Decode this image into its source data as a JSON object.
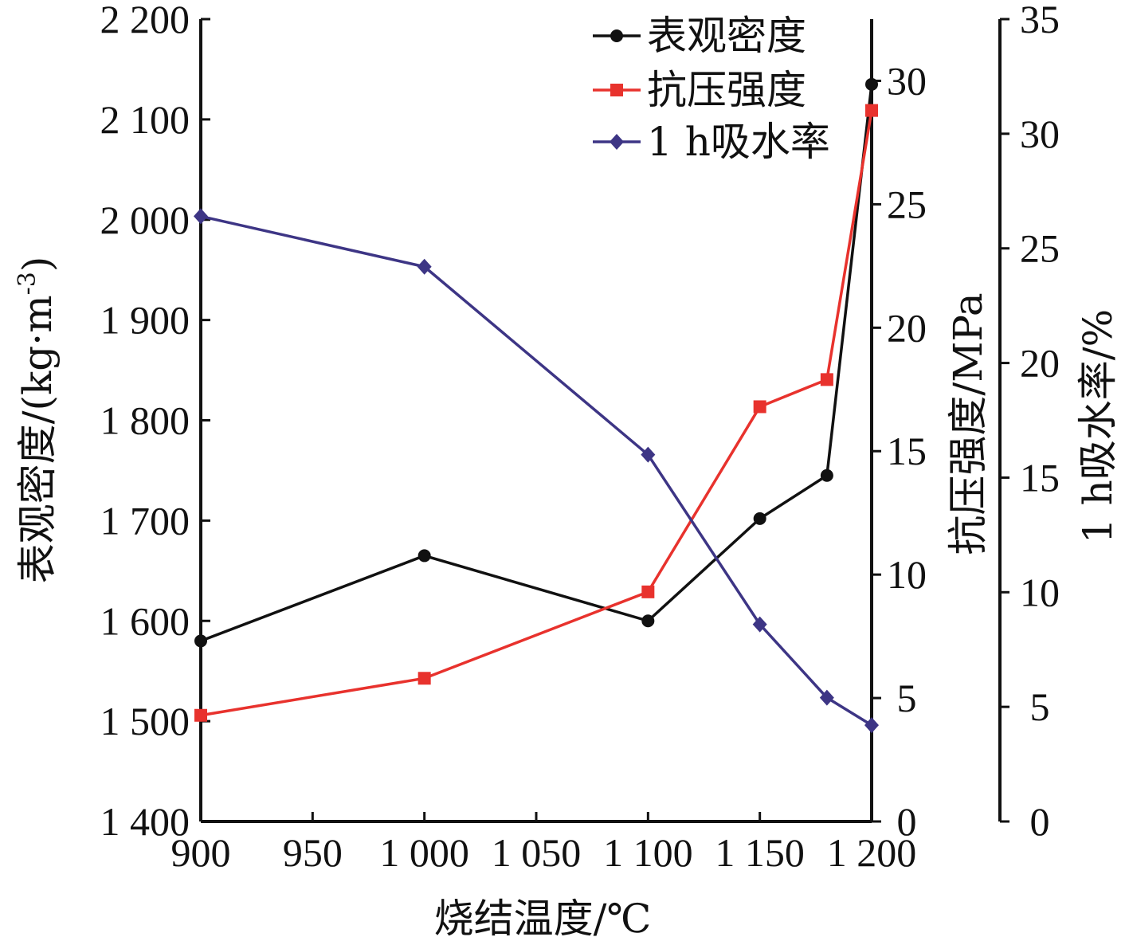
{
  "chart_data": {
    "type": "line",
    "xlabel": "烧结温度/℃",
    "x_ticks": [
      "900",
      "950",
      "1 000",
      "1 050",
      "1 100",
      "1 150",
      "1 200"
    ],
    "x_tick_values": [
      900,
      950,
      1000,
      1050,
      1100,
      1150,
      1200
    ],
    "xlim": [
      900,
      1200
    ],
    "y_axes": [
      {
        "id": "density",
        "label": "表观密度/(kg·m-3)",
        "label_main": "表观密度/(kg·m",
        "label_sup": "-3",
        "label_end": ")",
        "position": "left",
        "ylim": [
          1400,
          2200
        ],
        "ticks": [
          "1 400",
          "1 500",
          "1 600",
          "1 700",
          "1 800",
          "1 900",
          "2 000",
          "2 100",
          "2 200"
        ],
        "tick_values": [
          1400,
          1500,
          1600,
          1700,
          1800,
          1900,
          2000,
          2100,
          2200
        ]
      },
      {
        "id": "strength",
        "label": "抗压强度/MPa",
        "position": "right",
        "ylim": [
          0,
          32.5
        ],
        "ticks": [
          "0",
          "5",
          "10",
          "15",
          "20",
          "25",
          "30"
        ],
        "tick_values": [
          0,
          5,
          10,
          15,
          20,
          25,
          30
        ]
      },
      {
        "id": "absorption",
        "label": "1 h吸水率/%",
        "position": "far-right",
        "ylim": [
          0,
          35
        ],
        "ticks": [
          "0",
          "5",
          "10",
          "15",
          "20",
          "25",
          "30",
          "35"
        ],
        "tick_values": [
          0,
          5,
          10,
          15,
          20,
          25,
          30,
          35
        ]
      }
    ],
    "series": [
      {
        "name": "表观密度",
        "axis": "density",
        "color": "#111111",
        "marker": "circle",
        "x": [
          900,
          1000,
          1100,
          1150,
          1180,
          1200
        ],
        "values": [
          1580,
          1665,
          1600,
          1702,
          1745,
          2135
        ]
      },
      {
        "name": "抗压强度",
        "axis": "strength",
        "color": "#e8322d",
        "marker": "square",
        "x": [
          900,
          1000,
          1100,
          1150,
          1180,
          1200
        ],
        "values": [
          4.3,
          5.8,
          9.3,
          16.8,
          17.9,
          28.8
        ]
      },
      {
        "name": "1 h吸水率",
        "axis": "absorption",
        "color": "#3d3585",
        "marker": "diamond",
        "x": [
          900,
          1000,
          1100,
          1150,
          1180,
          1200
        ],
        "values": [
          26.4,
          24.2,
          16.0,
          8.6,
          5.4,
          4.2
        ]
      }
    ],
    "legend_position": "top-right",
    "grid": false
  }
}
